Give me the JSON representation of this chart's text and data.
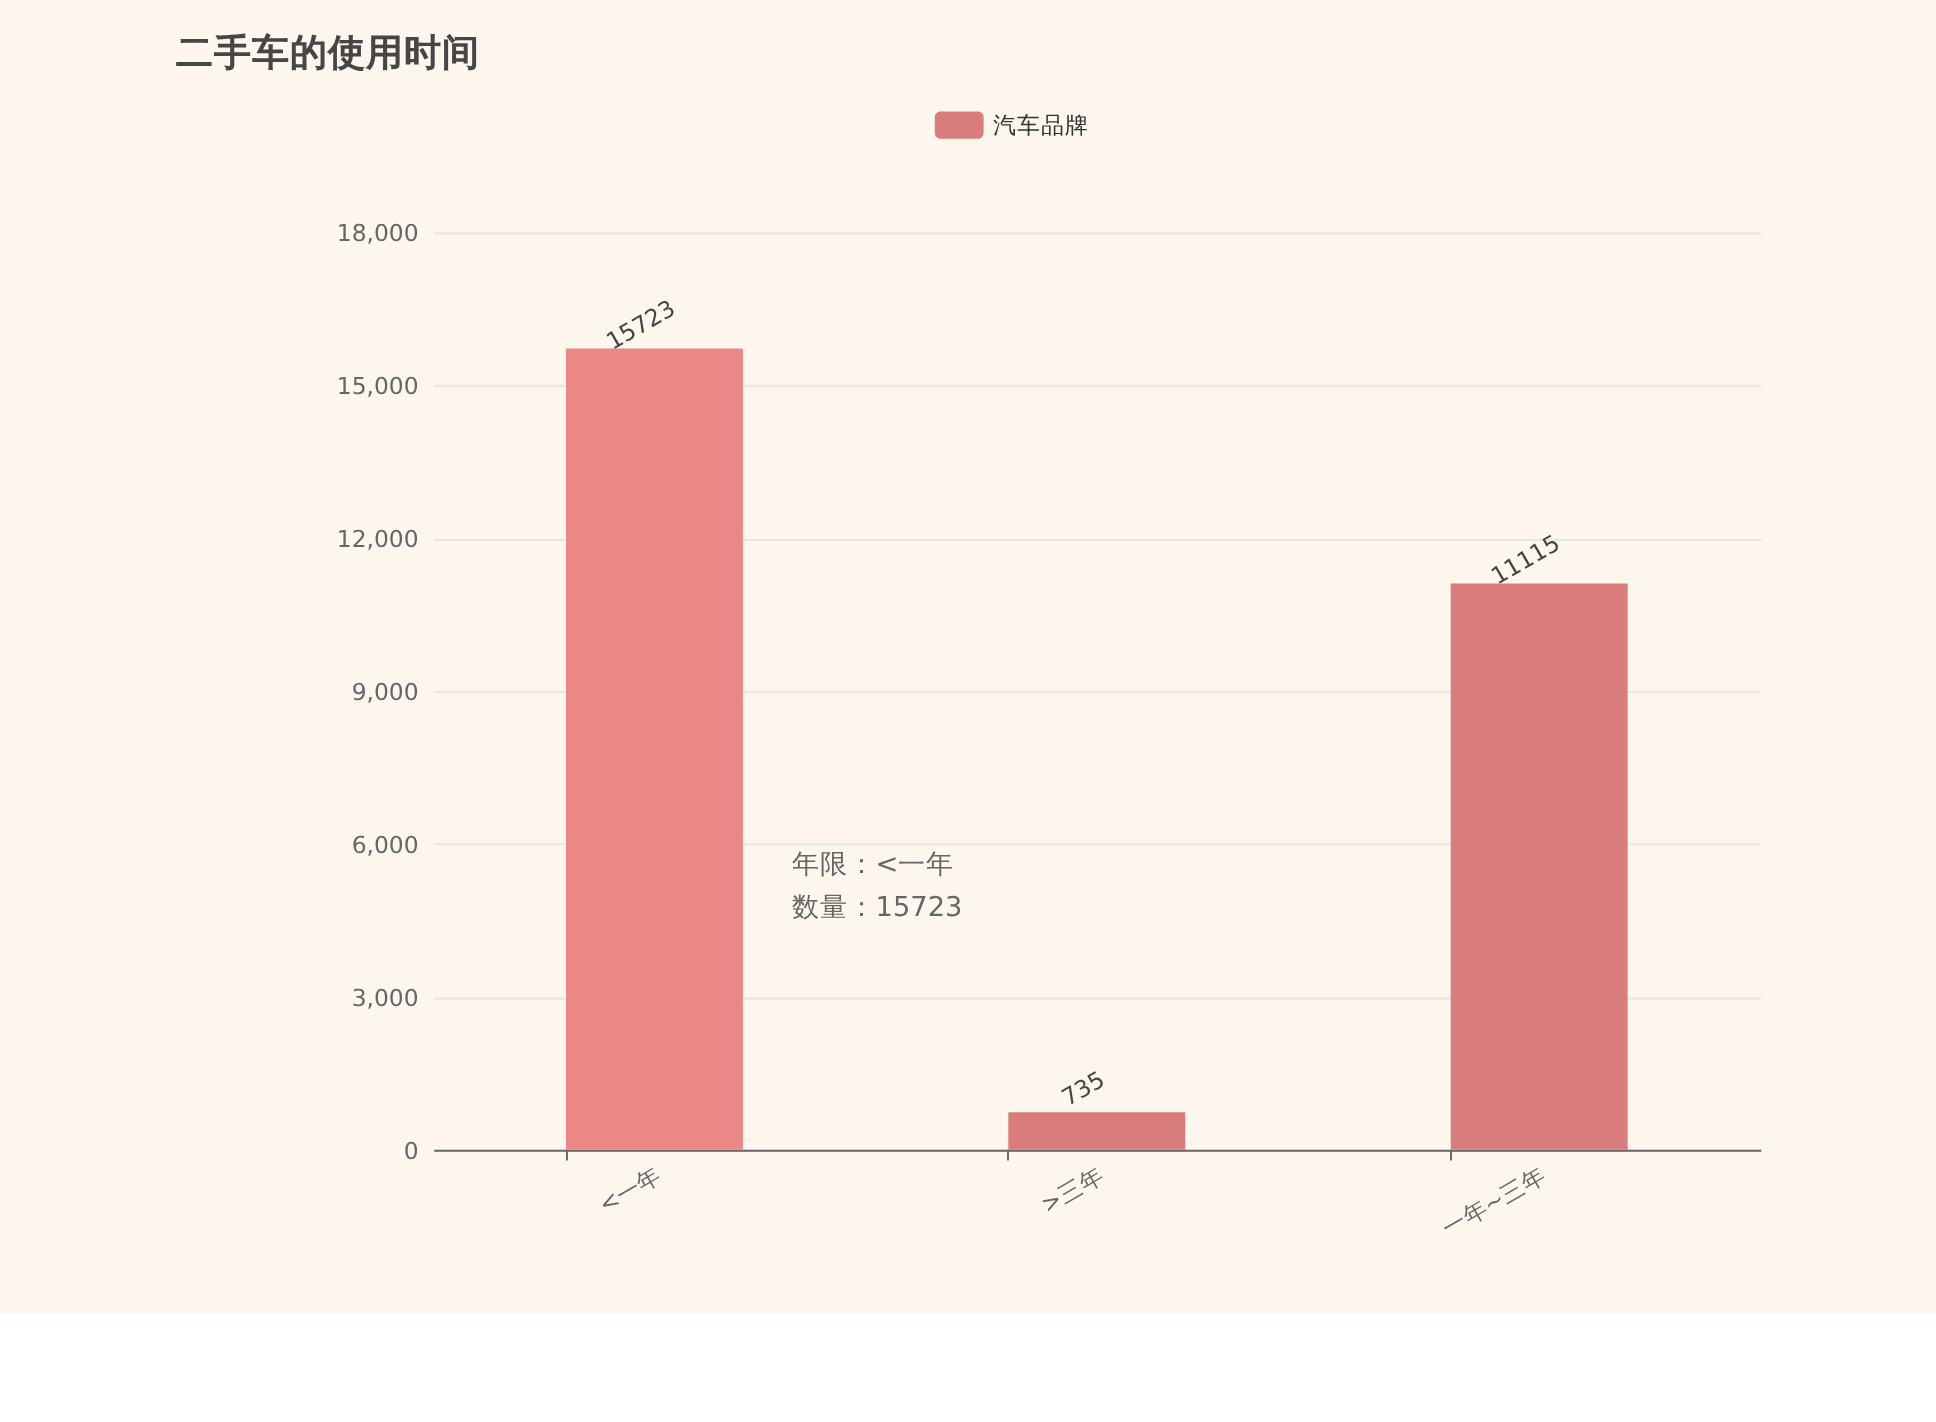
{
  "chart_data": {
    "type": "bar",
    "title": "二手车的使用时间",
    "categories": [
      "<一年",
      ">三年",
      "一年~三年"
    ],
    "series": [
      {
        "name": "汽车品牌",
        "color": "#d87c7c",
        "colors": [
          "#eb8784",
          "#d87c7c",
          "#d87c7c"
        ],
        "values": [
          15723,
          735,
          11115
        ]
      }
    ],
    "ylim": [
      0,
      18000
    ],
    "yticks": [
      0,
      {
        "value": 3000,
        "label": "3,000"
      },
      {
        "value": 6000,
        "label": "6,000"
      },
      {
        "value": 9000,
        "label": "9,000"
      },
      {
        "value": 12000,
        "label": "12,000"
      },
      {
        "value": 15000,
        "label": "15,000"
      },
      {
        "value": 18000,
        "label": "18,000"
      }
    ],
    "grid": "y",
    "legend": "top",
    "data_labels": true,
    "annotations": [
      "年限：<一年",
      "数量：15723"
    ]
  }
}
